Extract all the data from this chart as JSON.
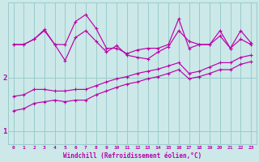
{
  "background_color": "#cce8e8",
  "grid_color": "#99cccc",
  "line_color": "#bb00aa",
  "x_values": [
    0,
    1,
    2,
    3,
    4,
    5,
    6,
    7,
    8,
    9,
    10,
    11,
    12,
    13,
    14,
    15,
    16,
    17,
    18,
    19,
    20,
    21,
    22,
    23
  ],
  "top_line": [
    2.62,
    2.62,
    2.72,
    2.9,
    2.62,
    2.62,
    3.05,
    3.18,
    2.92,
    2.55,
    2.55,
    2.45,
    2.52,
    2.55,
    2.55,
    2.62,
    3.1,
    2.55,
    2.62,
    2.62,
    2.88,
    2.55,
    2.88,
    2.65
  ],
  "main_line": [
    2.62,
    2.62,
    2.72,
    2.88,
    2.62,
    2.32,
    2.75,
    2.88,
    2.68,
    2.48,
    2.6,
    2.42,
    2.38,
    2.35,
    2.48,
    2.58,
    2.88,
    2.68,
    2.62,
    2.62,
    2.78,
    2.55,
    2.72,
    2.62
  ],
  "lower_line_1": [
    1.65,
    1.68,
    1.78,
    1.78,
    1.75,
    1.75,
    1.78,
    1.78,
    1.85,
    1.92,
    1.98,
    2.02,
    2.08,
    2.12,
    2.16,
    2.22,
    2.28,
    2.08,
    2.12,
    2.2,
    2.28,
    2.28,
    2.38,
    2.42
  ],
  "lower_line_2": [
    1.38,
    1.42,
    1.52,
    1.55,
    1.58,
    1.55,
    1.58,
    1.58,
    1.68,
    1.75,
    1.82,
    1.88,
    1.92,
    1.98,
    2.02,
    2.08,
    2.15,
    1.98,
    2.02,
    2.08,
    2.15,
    2.15,
    2.25,
    2.3
  ],
  "xlabel": "Windchill (Refroidissement éolien,°C)",
  "yticks": [
    1,
    2
  ],
  "xticks": [
    0,
    1,
    2,
    3,
    4,
    5,
    6,
    7,
    8,
    9,
    10,
    11,
    12,
    13,
    14,
    15,
    16,
    17,
    18,
    19,
    20,
    21,
    22,
    23
  ],
  "xlim": [
    -0.5,
    23.5
  ],
  "ylim": [
    0.75,
    3.4
  ]
}
